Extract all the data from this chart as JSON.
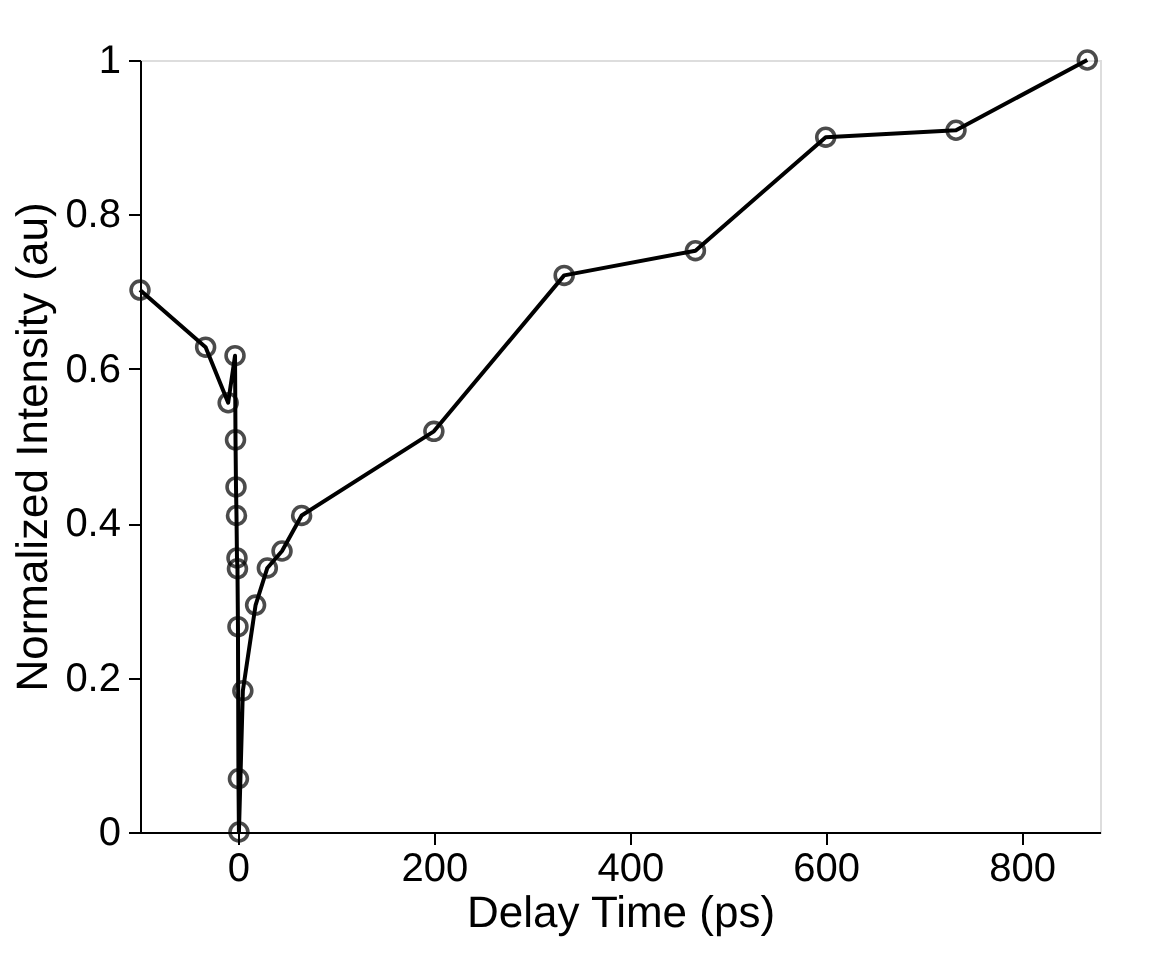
{
  "chart_data": {
    "type": "line",
    "xlabel": "Delay Time (ps)",
    "ylabel": "Normalized Intensity (au)",
    "x": [
      -100,
      -33,
      -10,
      -3,
      -2.5,
      -2,
      -1.5,
      -1,
      -0.5,
      0,
      0.5,
      1,
      5,
      18,
      30,
      45,
      65,
      200,
      333,
      467,
      600,
      733,
      867
    ],
    "series": [
      {
        "color": "#000000",
        "values": [
          0.702,
          0.628,
          0.556,
          0.617,
          0.508,
          0.447,
          0.41,
          0.355,
          0.341,
          0.266,
          0.069,
          0,
          0.183,
          0.294,
          0.342,
          0.364,
          0.41,
          0.519,
          0.721,
          0.753,
          0.9,
          0.909,
          1
        ]
      }
    ],
    "xlim": [
      -100,
      880
    ],
    "xticks": [
      0,
      200,
      400,
      600,
      800
    ],
    "ylim": [
      0,
      1
    ],
    "yticks": [
      0,
      0.2,
      0.4,
      0.6,
      0.8,
      1
    ],
    "marker": "circle",
    "line_style": "solid",
    "grid": false
  }
}
